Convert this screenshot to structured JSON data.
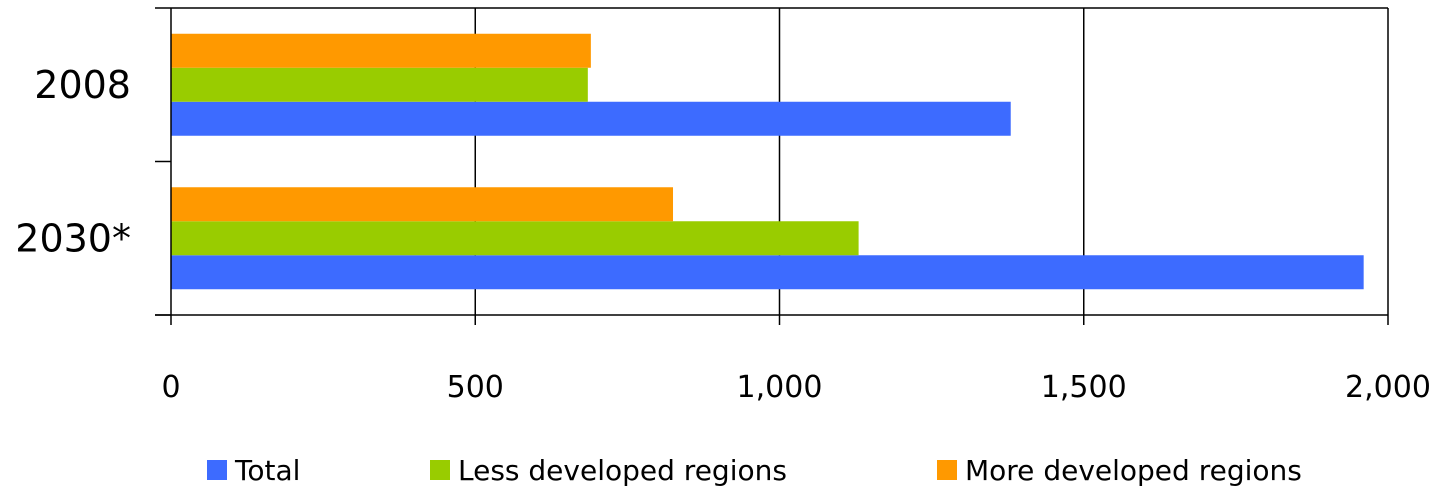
{
  "chart_data": {
    "type": "bar",
    "orientation": "horizontal",
    "title": "",
    "xlabel": "",
    "ylabel": "",
    "categories": [
      "2008",
      "2030*"
    ],
    "xlim": [
      0,
      2000
    ],
    "xticks": [
      0,
      500,
      1000,
      1500,
      2000
    ],
    "xtick_labels": [
      "0",
      "500",
      "1,000",
      "1,500",
      "2,000"
    ],
    "grid": "vertical",
    "legend_position": "bottom",
    "series": [
      {
        "name": "Total",
        "color": "#3D6BFF",
        "values": [
          1380,
          1960
        ]
      },
      {
        "name": "Less developed regions",
        "color": "#99CC00",
        "values": [
          685,
          1130
        ]
      },
      {
        "name": "More developed regions",
        "color": "#FF9900",
        "values": [
          690,
          825
        ]
      }
    ]
  }
}
